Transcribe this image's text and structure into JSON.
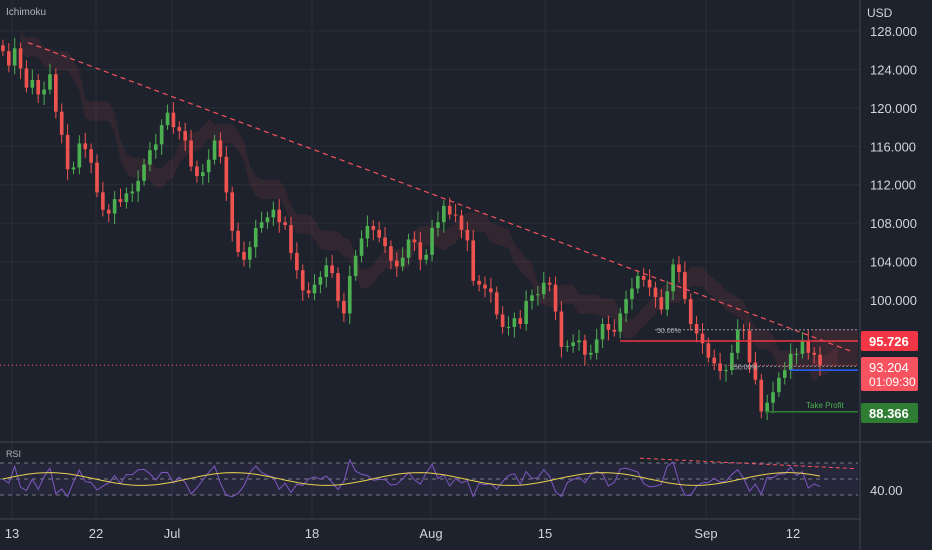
{
  "indicator_name": "Ichimoku",
  "currency": "USD",
  "rsi_label": "RSI",
  "rsi_tick": "40.00",
  "price_ticks": [
    "128.000",
    "124.000",
    "120.000",
    "116.000",
    "112.000",
    "108.000",
    "104.000",
    "100.000"
  ],
  "x_ticks": [
    "13",
    "22",
    "Jul",
    "18",
    "Aug",
    "15",
    "Sep",
    "12"
  ],
  "badges": {
    "resistance": "95.726",
    "current_price": "93.204",
    "countdown": "01:09:30",
    "take_profit": "88.366"
  },
  "annotations": {
    "fib_top": "50.00%",
    "fib_bottom": "50.00%",
    "take_profit_label": "Take Profit"
  },
  "colors": {
    "background": "#1e222d",
    "bull": "#26a69a",
    "bull_bright": "#4caf50",
    "bear": "#ef5350",
    "resistance": "#f23645",
    "take_profit": "#2e7d32",
    "rsi_line": "#7e57c2",
    "rsi_ma": "#e6d14f",
    "trendline": "#f7525f"
  },
  "chart_data": {
    "type": "candlestick",
    "ylim": [
      86,
      130
    ],
    "resistance_level": 95.726,
    "current_price": 93.204,
    "take_profit_level": 88.366,
    "downtrend_line": [
      [
        0.03,
        126.8
      ],
      [
        0.915,
        94.6
      ]
    ],
    "candles_close": [
      125.9,
      124.4,
      126.2,
      124.1,
      122.1,
      122.9,
      121.4,
      121.9,
      123.5,
      119.6,
      117.2,
      113.6,
      113.8,
      116.3,
      115.7,
      114.3,
      111.2,
      109.4,
      109.0,
      110.5,
      110.2,
      111.1,
      111.3,
      112.4,
      114.1,
      115.6,
      116.2,
      118.2,
      119.5,
      118.0,
      117.6,
      116.6,
      113.9,
      112.9,
      113.3,
      114.6,
      116.6,
      114.9,
      111.2,
      107.2,
      105.0,
      104.2,
      105.5,
      107.5,
      108.1,
      108.6,
      109.4,
      108.1,
      107.8,
      104.9,
      103.1,
      101.0,
      100.7,
      101.6,
      102.4,
      103.6,
      102.8,
      99.9,
      98.6,
      102.5,
      104.6,
      106.4,
      107.7,
      107.3,
      106.5,
      105.6,
      104.1,
      103.5,
      104.4,
      106.3,
      106.0,
      104.2,
      104.7,
      107.5,
      108.1,
      109.8,
      108.9,
      108.8,
      107.3,
      106.2,
      102.0,
      101.6,
      101.2,
      100.8,
      98.5,
      97.2,
      97.2,
      98.1,
      97.5,
      99.9,
      100.5,
      100.6,
      101.8,
      101.6,
      98.8,
      95.1,
      95.2,
      95.6,
      95.8,
      94.3,
      94.5,
      95.9,
      97.5,
      96.9,
      96.7,
      98.6,
      100.1,
      101.2,
      102.5,
      102.1,
      101.3,
      100.3,
      99.0,
      100.9,
      103.7,
      102.9,
      100.1,
      97.5,
      96.5,
      95.5,
      94.0,
      93.4,
      92.6,
      92.7,
      94.5,
      96.9,
      96.8,
      93.5,
      91.7,
      88.4,
      89.3,
      90.4,
      91.9,
      92.7,
      94.4,
      94.4,
      95.8,
      94.5,
      94.3,
      93.2
    ]
  }
}
